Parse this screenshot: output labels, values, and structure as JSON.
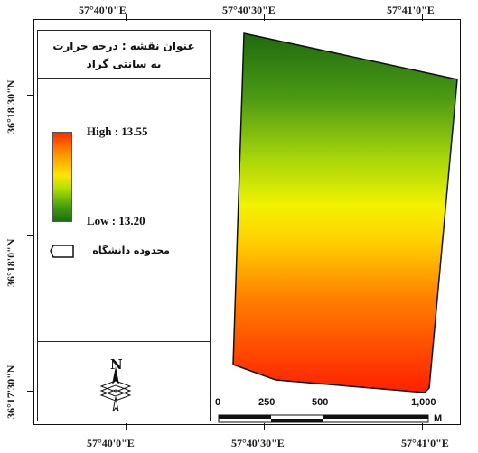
{
  "coordinates": {
    "top": [
      "57°40'0\"E",
      "57°40'30\"E",
      "57°41'0\"E"
    ],
    "bottom": [
      "57°40'0\"E",
      "57°40'30\"E",
      "57°41'0\"E"
    ],
    "left": [
      "36°18'30\"N",
      "36°18'0\"N",
      "36°17'30\"N"
    ]
  },
  "legend": {
    "title_line1": "عنوان نقشه : درجه حرارت",
    "title_line2": "به سانتی گراد",
    "high_label": "High : 13.55",
    "low_label": "Low : 13.20",
    "boundary_label": "محدوده دانشگاه",
    "ramp_colors": [
      "#ff2a00",
      "#ff8c00",
      "#ffe600",
      "#b8e200",
      "#3f9a12",
      "#1f6f10"
    ]
  },
  "north_arrow": {
    "letter": "N",
    "icon": "north-arrow-icon"
  },
  "scale_bar": {
    "ticks": [
      "0",
      "250",
      "500",
      "1,000"
    ],
    "unit": "M"
  },
  "map": {
    "fill_colors": {
      "top": "#2e7d14",
      "middle": "#f5f200",
      "bottom": "#ff3300"
    }
  }
}
